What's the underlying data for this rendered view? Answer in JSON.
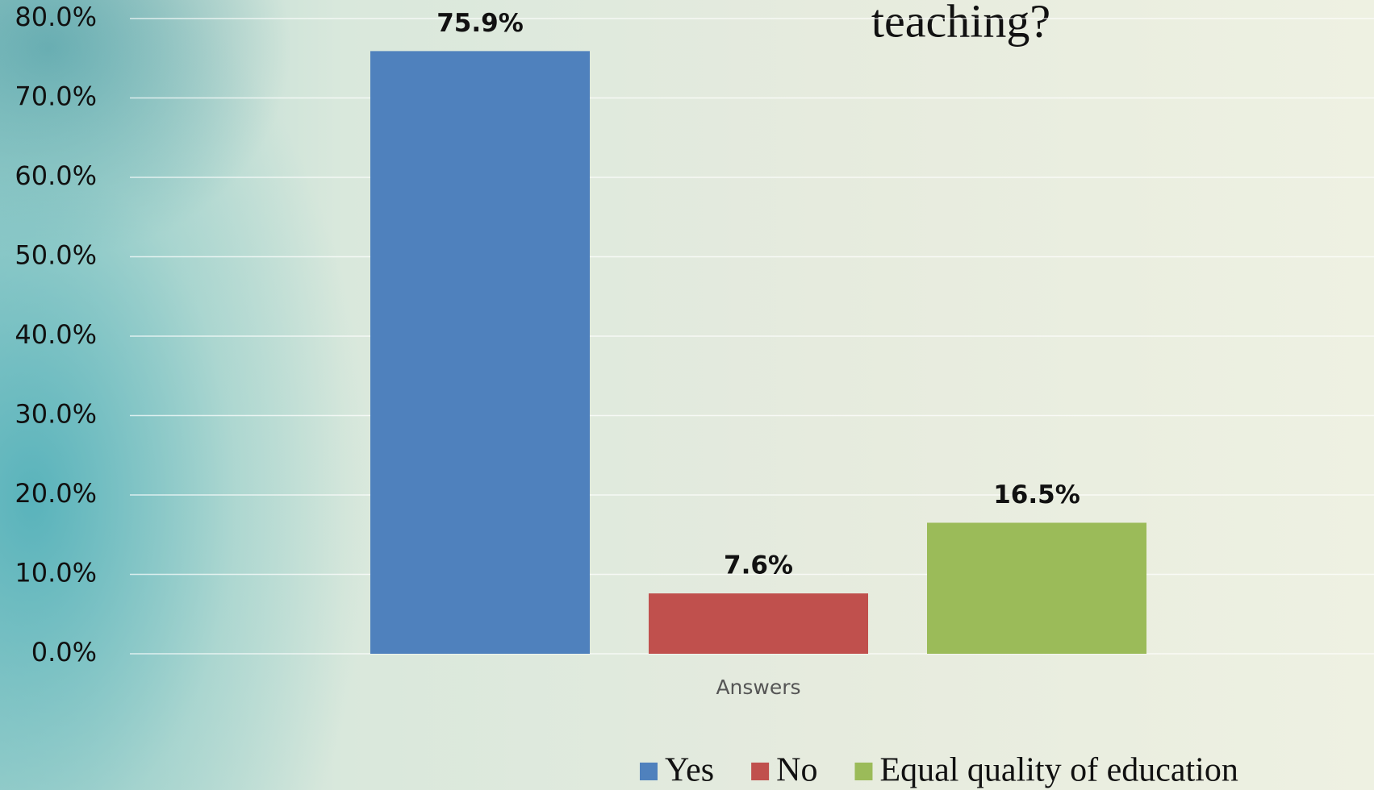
{
  "chart_data": {
    "type": "bar",
    "title": "teaching?",
    "categories": [
      "Answers"
    ],
    "series": [
      {
        "name": "Yes",
        "color": "#4f81bd",
        "values": [
          75.9
        ],
        "value_labels": [
          "75.9%"
        ]
      },
      {
        "name": "No",
        "color": "#c0504d",
        "values": [
          7.6
        ],
        "value_labels": [
          "7.6%"
        ]
      },
      {
        "name": "Equal quality of education",
        "color": "#9bbb59",
        "values": [
          16.5
        ],
        "value_labels": [
          "16.5%"
        ]
      }
    ],
    "ylim": [
      0,
      80
    ],
    "yticks": [
      {
        "value": 0,
        "label": "0.0%"
      },
      {
        "value": 10,
        "label": "10.0%"
      },
      {
        "value": 20,
        "label": "20.0%"
      },
      {
        "value": 30,
        "label": "30.0%"
      },
      {
        "value": 40,
        "label": "40.0%"
      },
      {
        "value": 50,
        "label": "50.0%"
      },
      {
        "value": 60,
        "label": "60.0%"
      },
      {
        "value": 70,
        "label": "70.0%"
      },
      {
        "value": 80,
        "label": "80.0%"
      }
    ],
    "grid": true,
    "legend": "bottom"
  }
}
